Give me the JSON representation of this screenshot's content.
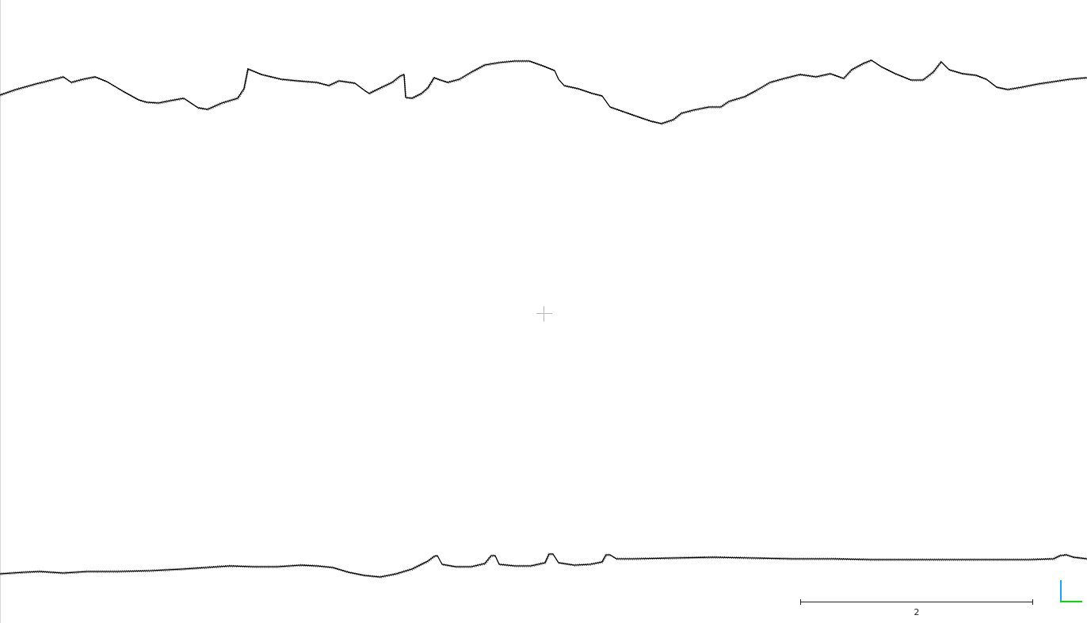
{
  "scale_bar": {
    "label": "2"
  },
  "axis_colors": {
    "x": "#00e000",
    "y": "#1aa6ff"
  },
  "point_color": "#000000"
}
